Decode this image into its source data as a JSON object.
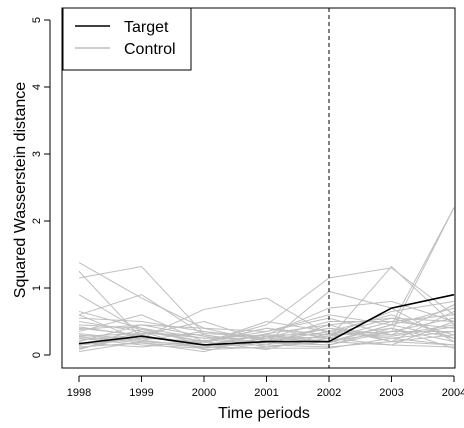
{
  "chart_data": {
    "type": "line",
    "title": "",
    "xlabel": "Time periods",
    "ylabel": "Squared Wasserstein distance",
    "x": [
      1998,
      1999,
      2000,
      2001,
      2002,
      2003,
      2004
    ],
    "xlim": [
      1998,
      2004
    ],
    "ylim": [
      0,
      5
    ],
    "yticks": [
      0,
      1,
      2,
      3,
      4,
      5
    ],
    "intervention_x": 2002,
    "legend": {
      "placement": "top-left",
      "entries": [
        {
          "label": "Target",
          "color": "#000000"
        },
        {
          "label": "Control",
          "color": "#bebebe"
        }
      ]
    },
    "series": [
      {
        "name": "Target",
        "color": "#000000",
        "values": [
          0.17,
          0.28,
          0.15,
          0.2,
          0.2,
          0.7,
          0.9
        ]
      },
      {
        "group": "Control",
        "color": "#bebebe",
        "values": [
          1.38,
          0.85,
          0.4,
          0.35,
          0.6,
          0.45,
          2.2
        ]
      },
      {
        "group": "Control",
        "color": "#bebebe",
        "values": [
          1.15,
          1.32,
          0.32,
          0.28,
          0.25,
          1.32,
          0.45
        ]
      },
      {
        "group": "Control",
        "color": "#bebebe",
        "values": [
          1.25,
          0.25,
          0.68,
          0.85,
          0.3,
          0.35,
          2.2
        ]
      },
      {
        "group": "Control",
        "color": "#bebebe",
        "values": [
          0.9,
          0.35,
          0.2,
          0.45,
          1.15,
          1.3,
          0.6
        ]
      },
      {
        "group": "Control",
        "color": "#bebebe",
        "values": [
          0.6,
          0.9,
          0.3,
          0.18,
          0.95,
          0.7,
          0.2
        ]
      },
      {
        "group": "Control",
        "color": "#bebebe",
        "values": [
          0.55,
          0.5,
          0.35,
          0.25,
          0.4,
          0.3,
          0.75
        ]
      },
      {
        "group": "Control",
        "color": "#bebebe",
        "values": [
          0.45,
          0.4,
          0.25,
          0.3,
          0.7,
          0.8,
          0.5
        ]
      },
      {
        "group": "Control",
        "color": "#bebebe",
        "values": [
          0.4,
          0.3,
          0.5,
          0.2,
          0.35,
          0.25,
          0.35
        ]
      },
      {
        "group": "Control",
        "color": "#bebebe",
        "values": [
          0.35,
          0.6,
          0.2,
          0.4,
          0.25,
          0.5,
          0.6
        ]
      },
      {
        "group": "Control",
        "color": "#bebebe",
        "values": [
          0.3,
          0.2,
          0.15,
          0.3,
          0.3,
          0.55,
          0.3
        ]
      },
      {
        "group": "Control",
        "color": "#bebebe",
        "values": [
          0.28,
          0.32,
          0.3,
          0.15,
          0.45,
          0.2,
          0.15
        ]
      },
      {
        "group": "Control",
        "color": "#bebebe",
        "values": [
          0.25,
          0.15,
          0.1,
          0.25,
          0.2,
          0.45,
          0.7
        ]
      },
      {
        "group": "Control",
        "color": "#bebebe",
        "values": [
          0.2,
          0.45,
          0.4,
          0.2,
          0.15,
          0.4,
          0.1
        ]
      },
      {
        "group": "Control",
        "color": "#bebebe",
        "values": [
          0.15,
          0.25,
          0.2,
          0.35,
          0.55,
          0.3,
          0.45
        ]
      },
      {
        "group": "Control",
        "color": "#bebebe",
        "values": [
          0.12,
          0.18,
          0.12,
          0.1,
          0.1,
          0.25,
          0.15
        ]
      },
      {
        "group": "Control",
        "color": "#bebebe",
        "values": [
          0.1,
          0.28,
          0.18,
          0.5,
          0.35,
          0.6,
          0.25
        ]
      },
      {
        "group": "Control",
        "color": "#bebebe",
        "values": [
          0.08,
          0.35,
          0.08,
          0.12,
          0.2,
          0.15,
          0.5
        ]
      },
      {
        "group": "Control",
        "color": "#bebebe",
        "values": [
          0.05,
          0.2,
          0.15,
          0.15,
          0.12,
          0.2,
          0.3
        ]
      },
      {
        "group": "Control",
        "color": "#bebebe",
        "values": [
          0.5,
          0.35,
          0.25,
          0.25,
          0.5,
          0.5,
          0.4
        ]
      },
      {
        "group": "Control",
        "color": "#bebebe",
        "values": [
          0.65,
          0.4,
          0.15,
          0.3,
          0.2,
          0.35,
          0.55
        ]
      },
      {
        "group": "Control",
        "color": "#bebebe",
        "values": [
          0.32,
          0.22,
          0.35,
          0.22,
          0.28,
          0.4,
          0.2
        ]
      },
      {
        "group": "Control",
        "color": "#bebebe",
        "values": [
          0.22,
          0.3,
          0.1,
          0.2,
          0.4,
          0.2,
          0.65
        ]
      },
      {
        "group": "Control",
        "color": "#bebebe",
        "values": [
          0.18,
          0.12,
          0.22,
          0.18,
          0.15,
          0.35,
          0.35
        ]
      },
      {
        "group": "Control",
        "color": "#bebebe",
        "values": [
          0.42,
          0.28,
          0.18,
          0.4,
          0.3,
          0.65,
          0.8
        ]
      },
      {
        "group": "Control",
        "color": "#bebebe",
        "values": [
          0.38,
          0.45,
          0.28,
          0.12,
          0.25,
          0.15,
          0.12
        ]
      },
      {
        "group": "Control",
        "color": "#bebebe",
        "values": [
          0.27,
          0.18,
          0.05,
          0.28,
          0.18,
          0.45,
          0.25
        ]
      },
      {
        "group": "Control",
        "color": "#bebebe",
        "values": [
          0.14,
          0.38,
          0.2,
          0.08,
          0.32,
          0.28,
          0.42
        ]
      },
      {
        "group": "Control",
        "color": "#bebebe",
        "values": [
          0.6,
          0.22,
          0.12,
          0.32,
          0.45,
          0.55,
          0.5
        ]
      }
    ]
  }
}
